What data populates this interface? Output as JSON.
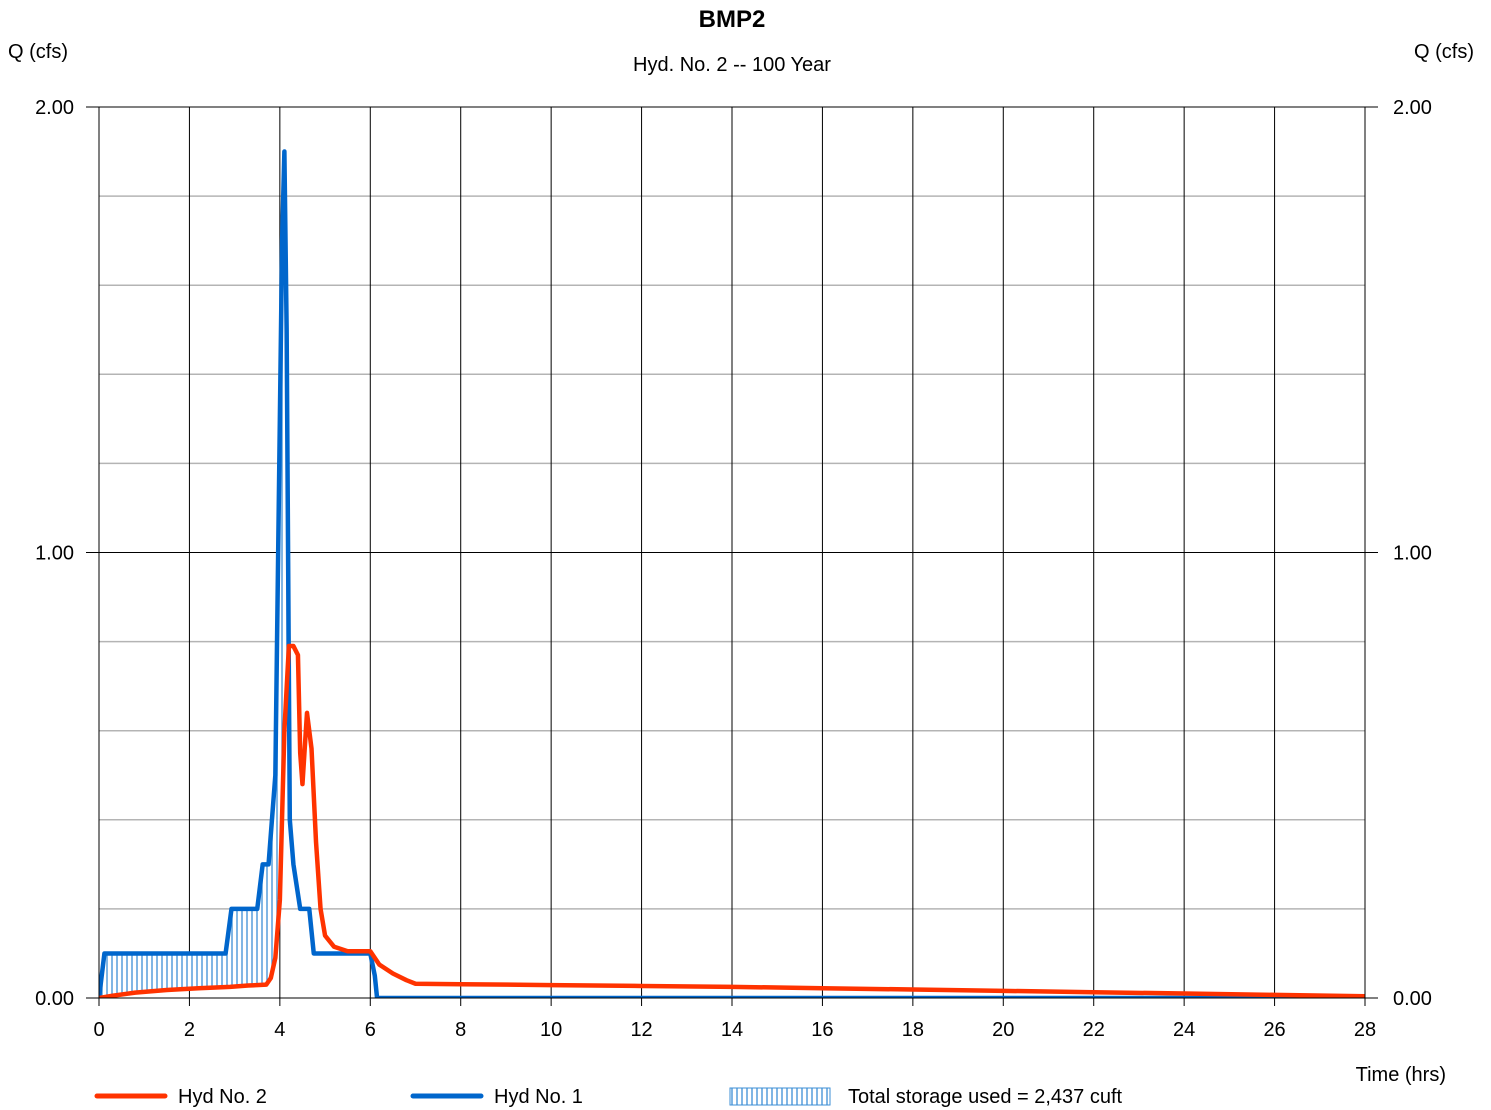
{
  "chart_data": {
    "type": "line",
    "title": "BMP2",
    "subtitle": "Hyd. No. 2 -- 100 Year",
    "ylabel_left": "Q (cfs)",
    "ylabel_right": "Q (cfs)",
    "xlabel": "Time (hrs)",
    "xlim": [
      0,
      28
    ],
    "ylim": [
      0,
      2.0
    ],
    "x_ticks": [
      0,
      2,
      4,
      6,
      8,
      10,
      12,
      14,
      16,
      18,
      20,
      22,
      24,
      26,
      28
    ],
    "x_tick_labels": [
      "0",
      "2",
      "4",
      "6",
      "8",
      "10",
      "12",
      "14",
      "16",
      "18",
      "20",
      "22",
      "24",
      "26",
      "28"
    ],
    "y_ticks": [
      0,
      1,
      2
    ],
    "y_tick_labels": [
      "0.00",
      "1.00",
      "2.00"
    ],
    "y_minor_step": 0.2,
    "grid": true,
    "legend_position": "bottom",
    "series": [
      {
        "name": "Hyd No. 2",
        "color": "#ff3300",
        "x": [
          0,
          0.3,
          0.8,
          1.5,
          2.2,
          2.9,
          3.3,
          3.7,
          3.8,
          3.9,
          4.0,
          4.1,
          4.2,
          4.3,
          4.4,
          4.45,
          4.5,
          4.6,
          4.7,
          4.8,
          4.9,
          5.0,
          5.2,
          5.5,
          6.0,
          6.2,
          6.5,
          6.8,
          7.0,
          8,
          10,
          12,
          14,
          16,
          18,
          20,
          22,
          24,
          26,
          28
        ],
        "values": [
          0,
          0.005,
          0.012,
          0.018,
          0.022,
          0.025,
          0.028,
          0.03,
          0.045,
          0.09,
          0.22,
          0.6,
          0.79,
          0.79,
          0.77,
          0.55,
          0.48,
          0.64,
          0.56,
          0.35,
          0.2,
          0.14,
          0.115,
          0.105,
          0.105,
          0.075,
          0.055,
          0.04,
          0.032,
          0.031,
          0.029,
          0.027,
          0.025,
          0.022,
          0.019,
          0.016,
          0.013,
          0.01,
          0.007,
          0.004
        ]
      },
      {
        "name": "Hyd No. 1",
        "color": "#0066cc",
        "x": [
          0,
          0.12,
          0.17,
          2.8,
          2.93,
          3.5,
          3.62,
          3.75,
          3.9,
          4.0,
          4.05,
          4.1,
          4.15,
          4.22,
          4.3,
          4.45,
          4.65,
          4.75,
          5.0,
          6.0,
          6.1,
          6.15,
          28
        ],
        "values": [
          0,
          0.1,
          0.1,
          0.1,
          0.2,
          0.2,
          0.3,
          0.3,
          0.5,
          1.3,
          1.7,
          1.9,
          1.5,
          0.4,
          0.3,
          0.2,
          0.2,
          0.1,
          0.1,
          0.1,
          0.05,
          0.0,
          0.0
        ]
      }
    ],
    "storage_fill": {
      "label": "Total storage used = 2,437 cuft",
      "color": "#3d8fd6"
    }
  }
}
